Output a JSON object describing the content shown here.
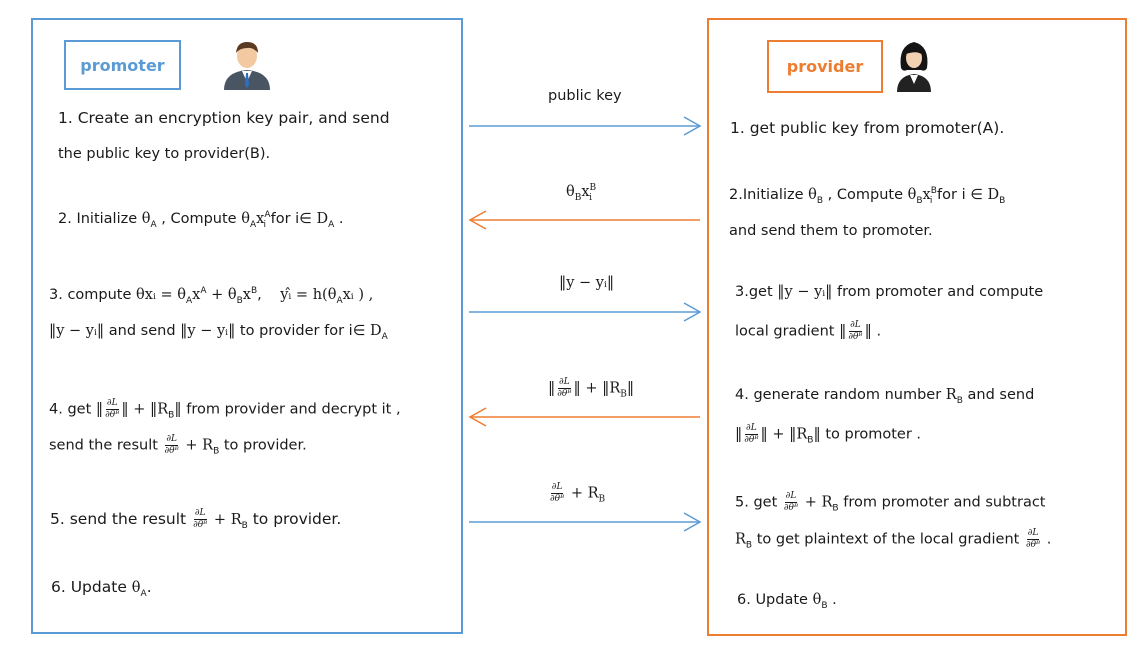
{
  "promoter": {
    "label": "promoter",
    "steps": {
      "s1_line1": "1.  Create an encryption key pair, and send",
      "s1_line2": "the public key to provider(B).",
      "s2_prefix": "2.  Initialize  ",
      "s2_mid": " ,  Compute  ",
      "s2_for": "  for i∈  ",
      "s2_end": " .",
      "s3_prefix": "3.  compute   ",
      "s3_mid": "  and send  ",
      "s3_to": " to provider for   i∈  ",
      "s4_prefix": "4.  get ",
      "s4_mid": " from provider and decrypt it ,",
      "s4_line2_prefix": "send the result ",
      "s4_line2_suffix": " to provider.",
      "s5_prefix": "5.    send the result ",
      "s5_suffix": " to provider.",
      "s6_prefix": "6.   Update  ",
      "s6_suffix": "."
    }
  },
  "provider": {
    "label": "provider",
    "steps": {
      "s1": "1.  get public key from promoter(A).",
      "s2_prefix": "2.Initialize  ",
      "s2_mid": "   ,  Compute  ",
      "s2_for": "  for i ∈   ",
      "s2_line2": "and send them to promoter.",
      "s3_prefix": "3.get  ",
      "s3_mid": "   from promoter and compute",
      "s3_line2_prefix": "local gradient  ",
      "s3_line2_suffix": " .",
      "s4_line1": "4.  generate  random  number  ",
      "s4_line1_end": " and  send",
      "s4_line2_suffix": " to promoter .",
      "s5_prefix": "5.  get  ",
      "s5_mid": "  from promoter and subtract",
      "s5_line2_mid": "  to get plaintext of the local gradient  ",
      "s5_line2_end": " .",
      "s6_prefix": "6. Update  ",
      "s6_suffix": "  ."
    }
  },
  "arrows": {
    "a1_label": "public key",
    "a3_label": "‖y − yᵢ‖"
  },
  "math": {
    "theta": "θ",
    "x": "x",
    "A": "A",
    "B": "B",
    "i": "i",
    "D": "D",
    "R": "R",
    "plus": " + ",
    "partial_num": "∂L",
    "partial_den": "∂θᴮ",
    "norm_y": "‖y − yᵢ‖",
    "eq_theta_x": "θxᵢ",
    "eq_equals": " = ",
    "y_hat": "yᵢ̂",
    "h_expr": "h(θ",
    "h_close": "xᵢ ) ,",
    "norm_RB": "‖R"
  },
  "colors": {
    "promoter": "#5b9bd5",
    "provider": "#ed7d31"
  }
}
